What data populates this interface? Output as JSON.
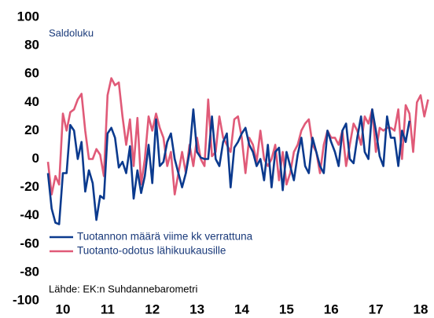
{
  "chart_data": {
    "type": "line",
    "annotations": [
      "Saldoluku",
      "Lähde: EK:n Suhdannebarometri"
    ],
    "categories": [
      null,
      null,
      null,
      null,
      "10",
      null,
      null,
      null,
      null,
      null,
      null,
      null,
      null,
      null,
      null,
      null,
      "11",
      null,
      null,
      null,
      null,
      null,
      null,
      null,
      null,
      null,
      null,
      null,
      "12",
      null,
      null,
      null,
      null,
      null,
      null,
      null,
      null,
      null,
      null,
      null,
      "13",
      null,
      null,
      null,
      null,
      null,
      null,
      null,
      null,
      null,
      null,
      null,
      "14",
      null,
      null,
      null,
      null,
      null,
      null,
      null,
      null,
      null,
      null,
      null,
      "15",
      null,
      null,
      null,
      null,
      null,
      null,
      null,
      null,
      null,
      null,
      null,
      "16",
      null,
      null,
      null,
      null,
      null,
      null,
      null,
      null,
      null,
      null,
      null,
      "17",
      null,
      null,
      null,
      null,
      null,
      null,
      null,
      null,
      null,
      null,
      null,
      "18",
      null,
      null
    ],
    "series": [
      {
        "name": "Tuotannon määrä viime kk verrattuna",
        "color": "#0b3a8e",
        "values": [
          -10,
          -35,
          -45,
          -46,
          -10,
          -10,
          24,
          20,
          0,
          12,
          -23,
          -8,
          -17,
          -43,
          -26,
          -28,
          18,
          22,
          15,
          -6,
          -2,
          -10,
          9,
          -28,
          -8,
          -24,
          -12,
          10,
          -17,
          28,
          -5,
          -2,
          12,
          18,
          0,
          -10,
          -20,
          -10,
          5,
          35,
          5,
          1,
          0,
          0,
          30,
          0,
          -5,
          12,
          18,
          -20,
          8,
          12,
          18,
          22,
          10,
          5,
          -5,
          0,
          -15,
          10,
          -20,
          5,
          8,
          -22,
          5,
          -5,
          -15,
          3,
          15,
          -5,
          -10,
          15,
          5,
          -5,
          -10,
          20,
          12,
          5,
          -5,
          20,
          25,
          0,
          -3,
          15,
          30,
          5,
          0,
          35,
          20,
          2,
          -5,
          30,
          15,
          15,
          -5,
          20,
          12,
          27,
          null,
          null,
          null,
          null,
          null
        ]
      },
      {
        "name": "Tuotanto-odotus lähikuukausille",
        "color": "#e05a78",
        "values": [
          -2,
          -25,
          -12,
          -18,
          32,
          20,
          33,
          35,
          42,
          46,
          20,
          0,
          0,
          7,
          3,
          -12,
          45,
          57,
          52,
          54,
          30,
          10,
          28,
          -5,
          29,
          -18,
          0,
          30,
          20,
          32,
          22,
          15,
          -5,
          5,
          -25,
          -10,
          5,
          -10,
          10,
          -5,
          15,
          0,
          -5,
          42,
          2,
          5,
          30,
          15,
          10,
          5,
          28,
          30,
          15,
          -10,
          15,
          10,
          -2,
          20,
          0,
          -5,
          0,
          10,
          -15,
          5,
          -18,
          -10,
          5,
          10,
          20,
          25,
          28,
          10,
          5,
          -10,
          10,
          20,
          15,
          15,
          10,
          20,
          -5,
          10,
          25,
          20,
          10,
          30,
          25,
          35,
          5,
          22,
          20,
          22,
          22,
          20,
          35,
          0,
          38,
          32,
          5,
          40,
          45,
          30,
          42
        ]
      }
    ],
    "ylim": [
      -100,
      100
    ],
    "yticks": [
      -100,
      -80,
      -60,
      -40,
      -20,
      0,
      20,
      40,
      60,
      80,
      100
    ],
    "grid": false,
    "legend": "lower left"
  }
}
